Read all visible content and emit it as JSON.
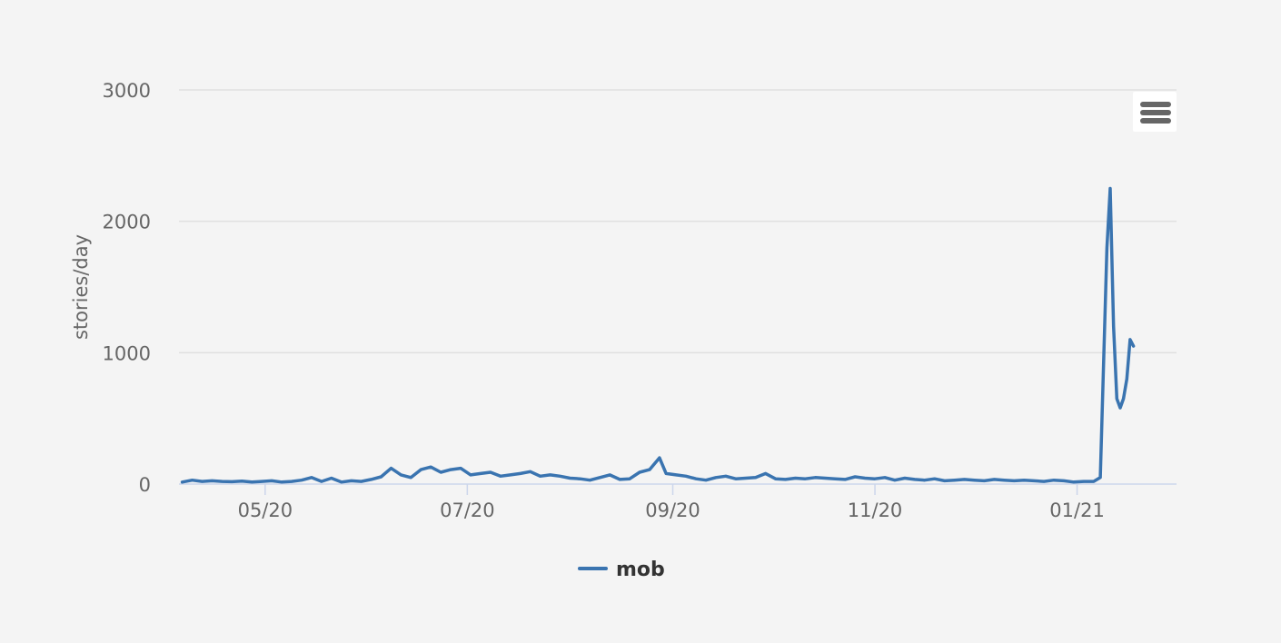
{
  "colors": {
    "background": "#f4f4f4",
    "series": "#3a74b0",
    "grid": "#e0e0e0",
    "axis_text": "#666666",
    "legend_text": "#333333",
    "menu_icon": "#666666"
  },
  "menu": {
    "icon": "hamburger-menu-icon"
  },
  "chart_data": {
    "type": "line",
    "title": "",
    "xlabel": "",
    "ylabel": "stories/day",
    "ylim": [
      0,
      3000
    ],
    "yticks": [
      0,
      1000,
      2000,
      3000
    ],
    "ytick_labels": [
      "0",
      "1000",
      "2000",
      "3000"
    ],
    "xlim": [
      "2020-04-05",
      "2021-01-31"
    ],
    "xticks": [
      "2020-05-01",
      "2020-07-01",
      "2020-09-01",
      "2020-11-01",
      "2021-01-01"
    ],
    "xtick_labels": [
      "05/20",
      "07/20",
      "09/20",
      "11/20",
      "01/21"
    ],
    "grid": true,
    "legend": "bottom-center",
    "series": [
      {
        "name": "mob",
        "x": [
          "2020-04-06",
          "2020-04-09",
          "2020-04-12",
          "2020-04-15",
          "2020-04-18",
          "2020-04-21",
          "2020-04-24",
          "2020-04-27",
          "2020-04-30",
          "2020-05-03",
          "2020-05-06",
          "2020-05-09",
          "2020-05-12",
          "2020-05-15",
          "2020-05-18",
          "2020-05-21",
          "2020-05-24",
          "2020-05-27",
          "2020-05-30",
          "2020-06-02",
          "2020-06-05",
          "2020-06-08",
          "2020-06-11",
          "2020-06-14",
          "2020-06-17",
          "2020-06-20",
          "2020-06-23",
          "2020-06-26",
          "2020-06-29",
          "2020-07-02",
          "2020-07-05",
          "2020-07-08",
          "2020-07-11",
          "2020-07-14",
          "2020-07-17",
          "2020-07-20",
          "2020-07-23",
          "2020-07-26",
          "2020-07-29",
          "2020-08-01",
          "2020-08-04",
          "2020-08-07",
          "2020-08-10",
          "2020-08-13",
          "2020-08-16",
          "2020-08-19",
          "2020-08-22",
          "2020-08-25",
          "2020-08-28",
          "2020-08-30",
          "2020-09-02",
          "2020-09-05",
          "2020-09-08",
          "2020-09-11",
          "2020-09-14",
          "2020-09-17",
          "2020-09-20",
          "2020-09-23",
          "2020-09-26",
          "2020-09-29",
          "2020-10-02",
          "2020-10-05",
          "2020-10-08",
          "2020-10-11",
          "2020-10-14",
          "2020-10-17",
          "2020-10-20",
          "2020-10-23",
          "2020-10-26",
          "2020-10-29",
          "2020-11-01",
          "2020-11-04",
          "2020-11-07",
          "2020-11-10",
          "2020-11-13",
          "2020-11-16",
          "2020-11-19",
          "2020-11-22",
          "2020-11-25",
          "2020-11-28",
          "2020-12-01",
          "2020-12-04",
          "2020-12-07",
          "2020-12-10",
          "2020-12-13",
          "2020-12-16",
          "2020-12-19",
          "2020-12-22",
          "2020-12-25",
          "2020-12-28",
          "2020-12-31",
          "2021-01-03",
          "2021-01-06",
          "2021-01-08",
          "2021-01-10",
          "2021-01-11",
          "2021-01-12",
          "2021-01-13",
          "2021-01-14",
          "2021-01-15",
          "2021-01-16",
          "2021-01-17",
          "2021-01-18"
        ],
        "y": [
          15,
          30,
          20,
          25,
          20,
          18,
          22,
          15,
          20,
          25,
          15,
          20,
          30,
          50,
          20,
          45,
          15,
          25,
          20,
          35,
          55,
          120,
          70,
          50,
          110,
          130,
          90,
          110,
          120,
          70,
          80,
          90,
          60,
          70,
          80,
          95,
          60,
          70,
          60,
          45,
          40,
          30,
          50,
          70,
          35,
          40,
          90,
          110,
          200,
          80,
          70,
          60,
          40,
          30,
          50,
          60,
          40,
          45,
          50,
          80,
          40,
          35,
          45,
          40,
          50,
          45,
          40,
          35,
          55,
          45,
          40,
          50,
          30,
          45,
          35,
          30,
          40,
          25,
          30,
          35,
          30,
          25,
          35,
          30,
          25,
          30,
          25,
          20,
          30,
          25,
          15,
          20,
          20,
          50,
          1800,
          2250,
          1200,
          650,
          580,
          650,
          800,
          1100,
          1050
        ]
      }
    ]
  }
}
